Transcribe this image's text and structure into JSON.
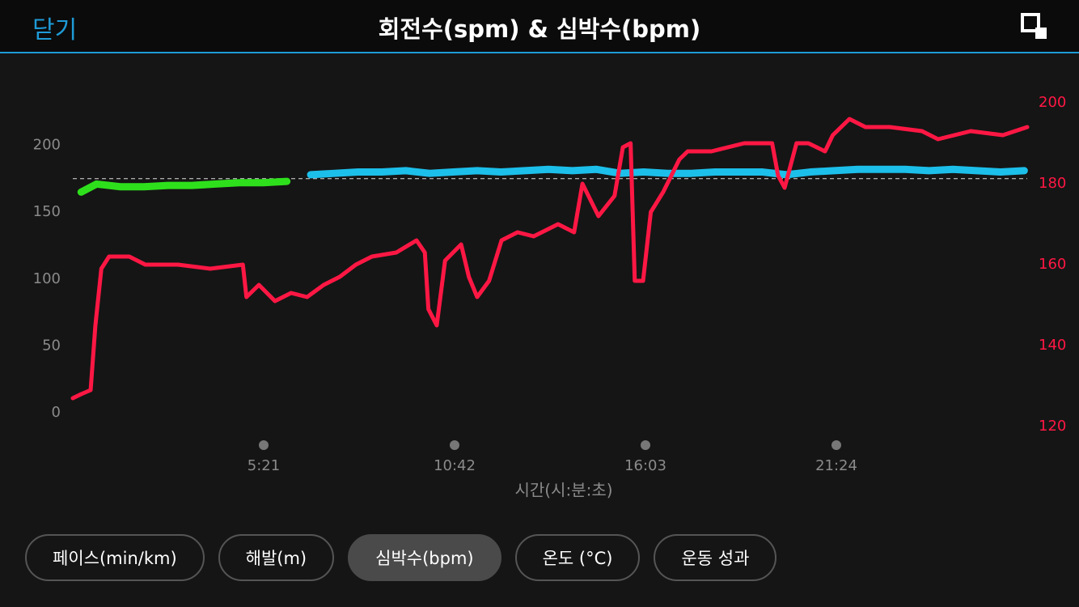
{
  "header": {
    "close": "닫기",
    "title": "회전수(spm) & 심박수(bpm)"
  },
  "chart_data": {
    "type": "line",
    "x_label": "시간(시:분:초)",
    "xlim": [
      0,
      1605
    ],
    "xticks": [
      {
        "value": 321,
        "label": "5:21"
      },
      {
        "value": 642,
        "label": "10:42"
      },
      {
        "value": 963,
        "label": "16:03"
      },
      {
        "value": 1284,
        "label": "21:24"
      }
    ],
    "ylim": [
      -18,
      242
    ],
    "yticks": [
      0,
      50,
      100,
      150,
      200
    ],
    "y2lim": [
      117.4,
      203.4
    ],
    "y2ticks": [
      120,
      140,
      160,
      180,
      200
    ],
    "average_line": 175,
    "series": [
      {
        "color": "#2ee01c",
        "x": [
          14,
          40,
          80,
          120,
          160,
          200,
          240,
          280,
          320,
          360
        ],
        "values": [
          165,
          171,
          169,
          169,
          170,
          170,
          171,
          172,
          172,
          173
        ]
      },
      {
        "color": "#1cbfea",
        "x": [
          400,
          440,
          480,
          520,
          560,
          600,
          640,
          680,
          720,
          760,
          800,
          840,
          880,
          920,
          960,
          1000,
          1040,
          1080,
          1120,
          1160,
          1200,
          1240,
          1280,
          1320,
          1360,
          1400,
          1440,
          1480,
          1520,
          1560,
          1600
        ],
        "values": [
          178,
          179,
          180,
          180,
          181,
          179,
          180,
          181,
          180,
          181,
          182,
          181,
          182,
          179,
          180,
          179,
          179,
          180,
          180,
          180,
          178,
          180,
          181,
          182,
          182,
          182,
          181,
          182,
          181,
          180,
          181
        ]
      },
      {
        "color": "#ff1744",
        "axis": "y2",
        "x": [
          0,
          14,
          30,
          38,
          48,
          61,
          95,
          122,
          177,
          231,
          286,
          292,
          313,
          340,
          367,
          394,
          422,
          449,
          476,
          503,
          544,
          578,
          592,
          598,
          612,
          626,
          653,
          666,
          680,
          700,
          721,
          748,
          775,
          816,
          843,
          857,
          884,
          911,
          925,
          938,
          945,
          959,
          972,
          993,
          1020,
          1034,
          1074,
          1129,
          1176,
          1186,
          1197,
          1217,
          1237,
          1265,
          1278,
          1306,
          1333,
          1374,
          1428,
          1455,
          1510,
          1564,
          1605
        ],
        "values": [
          127,
          128,
          129,
          145,
          159,
          162,
          162,
          160,
          160,
          159,
          160,
          152,
          155,
          151,
          153,
          152,
          155,
          157,
          160,
          162,
          163,
          166,
          163,
          149,
          145,
          161,
          165,
          157,
          152,
          156,
          166,
          168,
          167,
          170,
          168,
          180,
          172,
          177,
          189,
          190,
          156,
          156,
          173,
          178,
          186,
          188,
          188,
          190,
          190,
          182,
          179,
          190,
          190,
          188,
          192,
          196,
          194,
          194,
          193,
          191,
          193,
          192,
          194
        ]
      }
    ]
  },
  "tabs": [
    "페이스(min/km)",
    "해발(m)",
    "심박수(bpm)",
    "온도 (°C)",
    "운동 성과"
  ],
  "selected_tab": 2
}
